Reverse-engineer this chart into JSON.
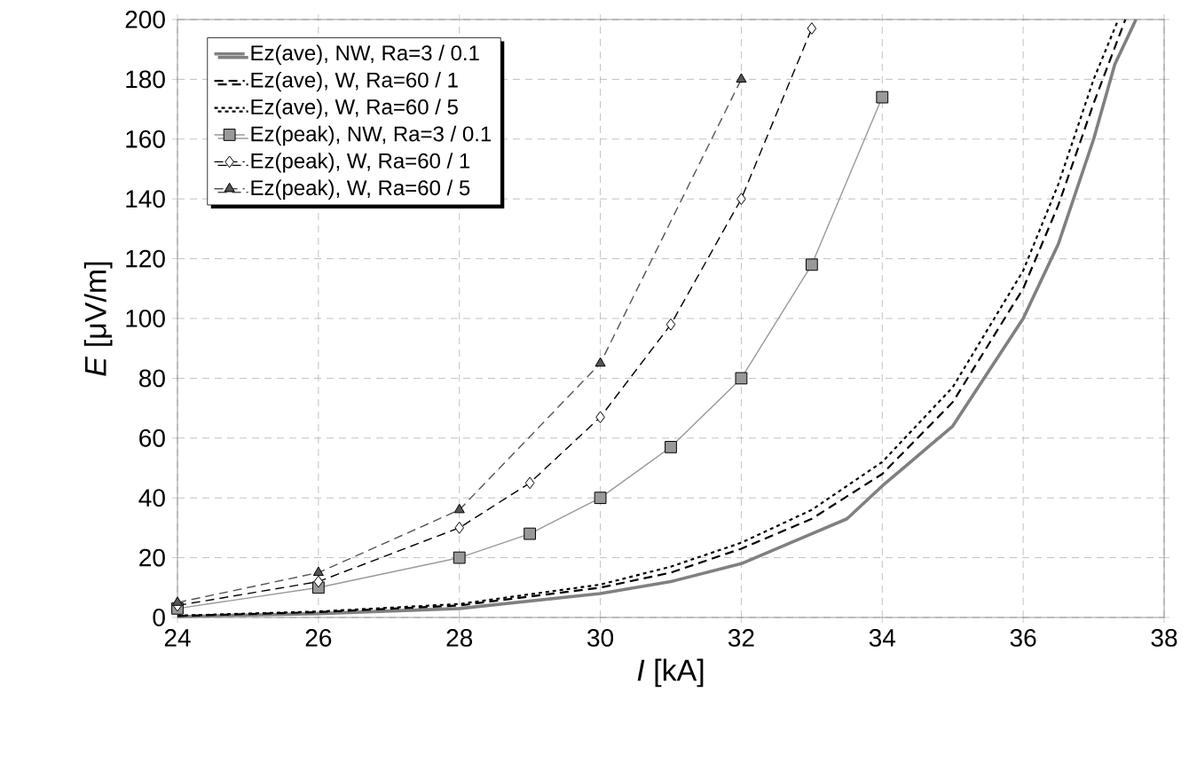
{
  "chart_data": {
    "type": "line",
    "xlabel": "*I* [kA]",
    "ylabel": "*E* [μV/m]",
    "xlim": [
      24,
      38
    ],
    "ylim": [
      0,
      200
    ],
    "xticks": [
      24,
      26,
      28,
      30,
      32,
      34,
      36,
      38
    ],
    "yticks": [
      0,
      20,
      40,
      60,
      80,
      100,
      120,
      140,
      160,
      180,
      200
    ],
    "grid": true,
    "legend": "top left",
    "series": [
      {
        "name": "Ez(ave), NW, Ra=3 / 0.1",
        "color": "#808080",
        "line_style": "solid",
        "marker": "none",
        "x": [
          24,
          26,
          28,
          30,
          31,
          32,
          33,
          33.5,
          34,
          35,
          36,
          36.5,
          37,
          37.3,
          37.6
        ],
        "values": [
          0.3,
          1.3,
          3,
          8,
          12,
          18,
          28,
          33,
          44,
          64,
          100,
          125,
          160,
          185,
          200
        ]
      },
      {
        "name": "Ez(ave), W, Ra=60 / 1",
        "color": "#000000",
        "line_style": "dashed",
        "marker": "none",
        "x": [
          24,
          26,
          28,
          30,
          31,
          32,
          33,
          34,
          35,
          36,
          36.5,
          37,
          37.45
        ],
        "values": [
          0.5,
          1.8,
          4,
          10,
          15,
          23,
          33,
          48,
          72,
          110,
          138,
          172,
          200
        ]
      },
      {
        "name": "Ez(ave), W, Ra=60 / 5",
        "color": "#000000",
        "line_style": "dotted",
        "marker": "none",
        "x": [
          24,
          26,
          28,
          30,
          31,
          32,
          33,
          34,
          35,
          36,
          36.5,
          37,
          37.35
        ],
        "values": [
          0.6,
          2,
          4.5,
          11,
          17,
          25,
          36,
          52,
          77,
          116,
          145,
          180,
          200
        ]
      },
      {
        "name": "Ez(peak), NW, Ra=3 / 0.1",
        "color": "#999999",
        "line_style": "solid",
        "marker": "square",
        "x": [
          24,
          26,
          28,
          29,
          30,
          31,
          32,
          33,
          34
        ],
        "values": [
          3,
          10,
          20,
          28,
          40,
          57,
          80,
          118,
          174
        ]
      },
      {
        "name": "Ez(peak), W, Ra=60 / 1",
        "color": "#000000",
        "line_style": "dashed",
        "marker": "diamond",
        "x": [
          24,
          26,
          28,
          29,
          30,
          31,
          32,
          33
        ],
        "values": [
          4,
          12,
          30,
          45,
          67,
          98,
          140,
          197
        ]
      },
      {
        "name": "Ez(peak), W, Ra=60 / 5",
        "color": "#555555",
        "line_style": "dashed",
        "marker": "triangle",
        "x": [
          24,
          26,
          28,
          30,
          32
        ],
        "values": [
          5,
          15,
          36,
          85,
          180
        ]
      }
    ]
  }
}
